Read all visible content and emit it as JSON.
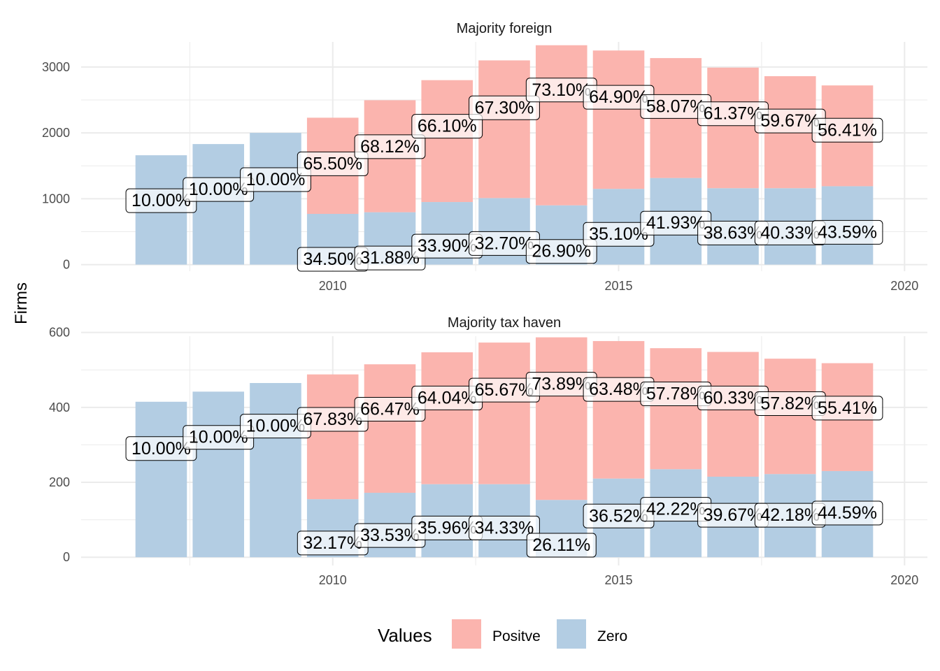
{
  "chart_data": {
    "type": "bar",
    "stacked": true,
    "ylabel": "Firms",
    "xlabel": "",
    "x": [
      2007,
      2008,
      2009,
      2010,
      2011,
      2012,
      2013,
      2014,
      2015,
      2016,
      2017,
      2018,
      2019
    ],
    "xticks": [
      2010,
      2015,
      2020
    ],
    "xtick_labels": [
      "2010",
      "2015",
      "2020"
    ],
    "xlim": [
      2005.6,
      2020.4
    ],
    "grid": true,
    "colors": {
      "Positve": "#fbb4ae",
      "Zero": "#b3cde3",
      "label_fill": "#ffffff",
      "grid": "#ebebeb"
    },
    "legend": {
      "title": "Values",
      "position": "bottom",
      "entries": [
        "Positve",
        "Zero"
      ]
    },
    "panels": [
      {
        "title": "Majority foreign",
        "ylim": [
          -100,
          3380
        ],
        "yticks": [
          0,
          1000,
          2000,
          3000
        ],
        "ytick_labels": [
          "0",
          "1000",
          "2000",
          "3000"
        ],
        "series": [
          {
            "name": "Positve",
            "values": [
              0,
              0,
              0,
              1460,
              1700,
              1850,
              2090,
              2430,
              2100,
              1820,
              1830,
              1700,
              1530
            ]
          },
          {
            "name": "Zero",
            "values": [
              1660,
              1830,
              2000,
              770,
              795,
              950,
              1010,
              900,
              1150,
              1315,
              1160,
              1160,
              1190
            ]
          }
        ],
        "labels_positive": [
          "10.00%",
          "10.00%",
          "10.00%",
          "65.50%",
          "68.12%",
          "66.10%",
          "67.30%",
          "73.10%",
          "64.90%",
          "58.07%",
          "61.37%",
          "59.67%",
          "56.41%"
        ],
        "labels_zero": [
          "",
          "",
          "",
          "34.50%",
          "31.88%",
          "33.90%",
          "32.70%",
          "26.90%",
          "35.10%",
          "41.93%",
          "38.63%",
          "40.33%",
          "43.59%"
        ],
        "label_y_positive": [
          970,
          1140,
          1290,
          1530,
          1790,
          2100,
          2380,
          2650,
          2540,
          2400,
          2290,
          2180,
          2040
        ],
        "label_y_zero": [
          0,
          0,
          0,
          80,
          100,
          280,
          320,
          200,
          460,
          630,
          480,
          480,
          490
        ]
      },
      {
        "title": "Majority tax haven",
        "ylim": [
          -22,
          590
        ],
        "yticks": [
          0,
          200,
          400,
          600
        ],
        "ytick_labels": [
          "0",
          "200",
          "400",
          "600"
        ],
        "series": [
          {
            "name": "Positve",
            "values": [
              0,
              0,
              0,
              333,
              343,
              352,
              378,
              434,
              367,
              323,
              333,
              308,
              288
            ]
          },
          {
            "name": "Zero",
            "values": [
              415,
              442,
              465,
              155,
              172,
              195,
              195,
              153,
              210,
              235,
              215,
              222,
              230
            ]
          }
        ],
        "labels_positive": [
          "10.00%",
          "10.00%",
          "10.00%",
          "67.83%",
          "66.47%",
          "64.04%",
          "65.67%",
          "73.89%",
          "63.48%",
          "57.78%",
          "60.33%",
          "57.82%",
          "55.41%"
        ],
        "labels_zero": [
          "",
          "",
          "",
          "32.17%",
          "33.53%",
          "35.96%",
          "34.33%",
          "26.11%",
          "36.52%",
          "42.22%",
          "39.67%",
          "42.18%",
          "44.59%"
        ],
        "label_y_positive": [
          290,
          320,
          350,
          368,
          395,
          425,
          446,
          462,
          448,
          436,
          425,
          410,
          398
        ],
        "label_y_zero": [
          0,
          0,
          0,
          38,
          58,
          78,
          78,
          32,
          110,
          128,
          112,
          112,
          118
        ]
      }
    ]
  }
}
